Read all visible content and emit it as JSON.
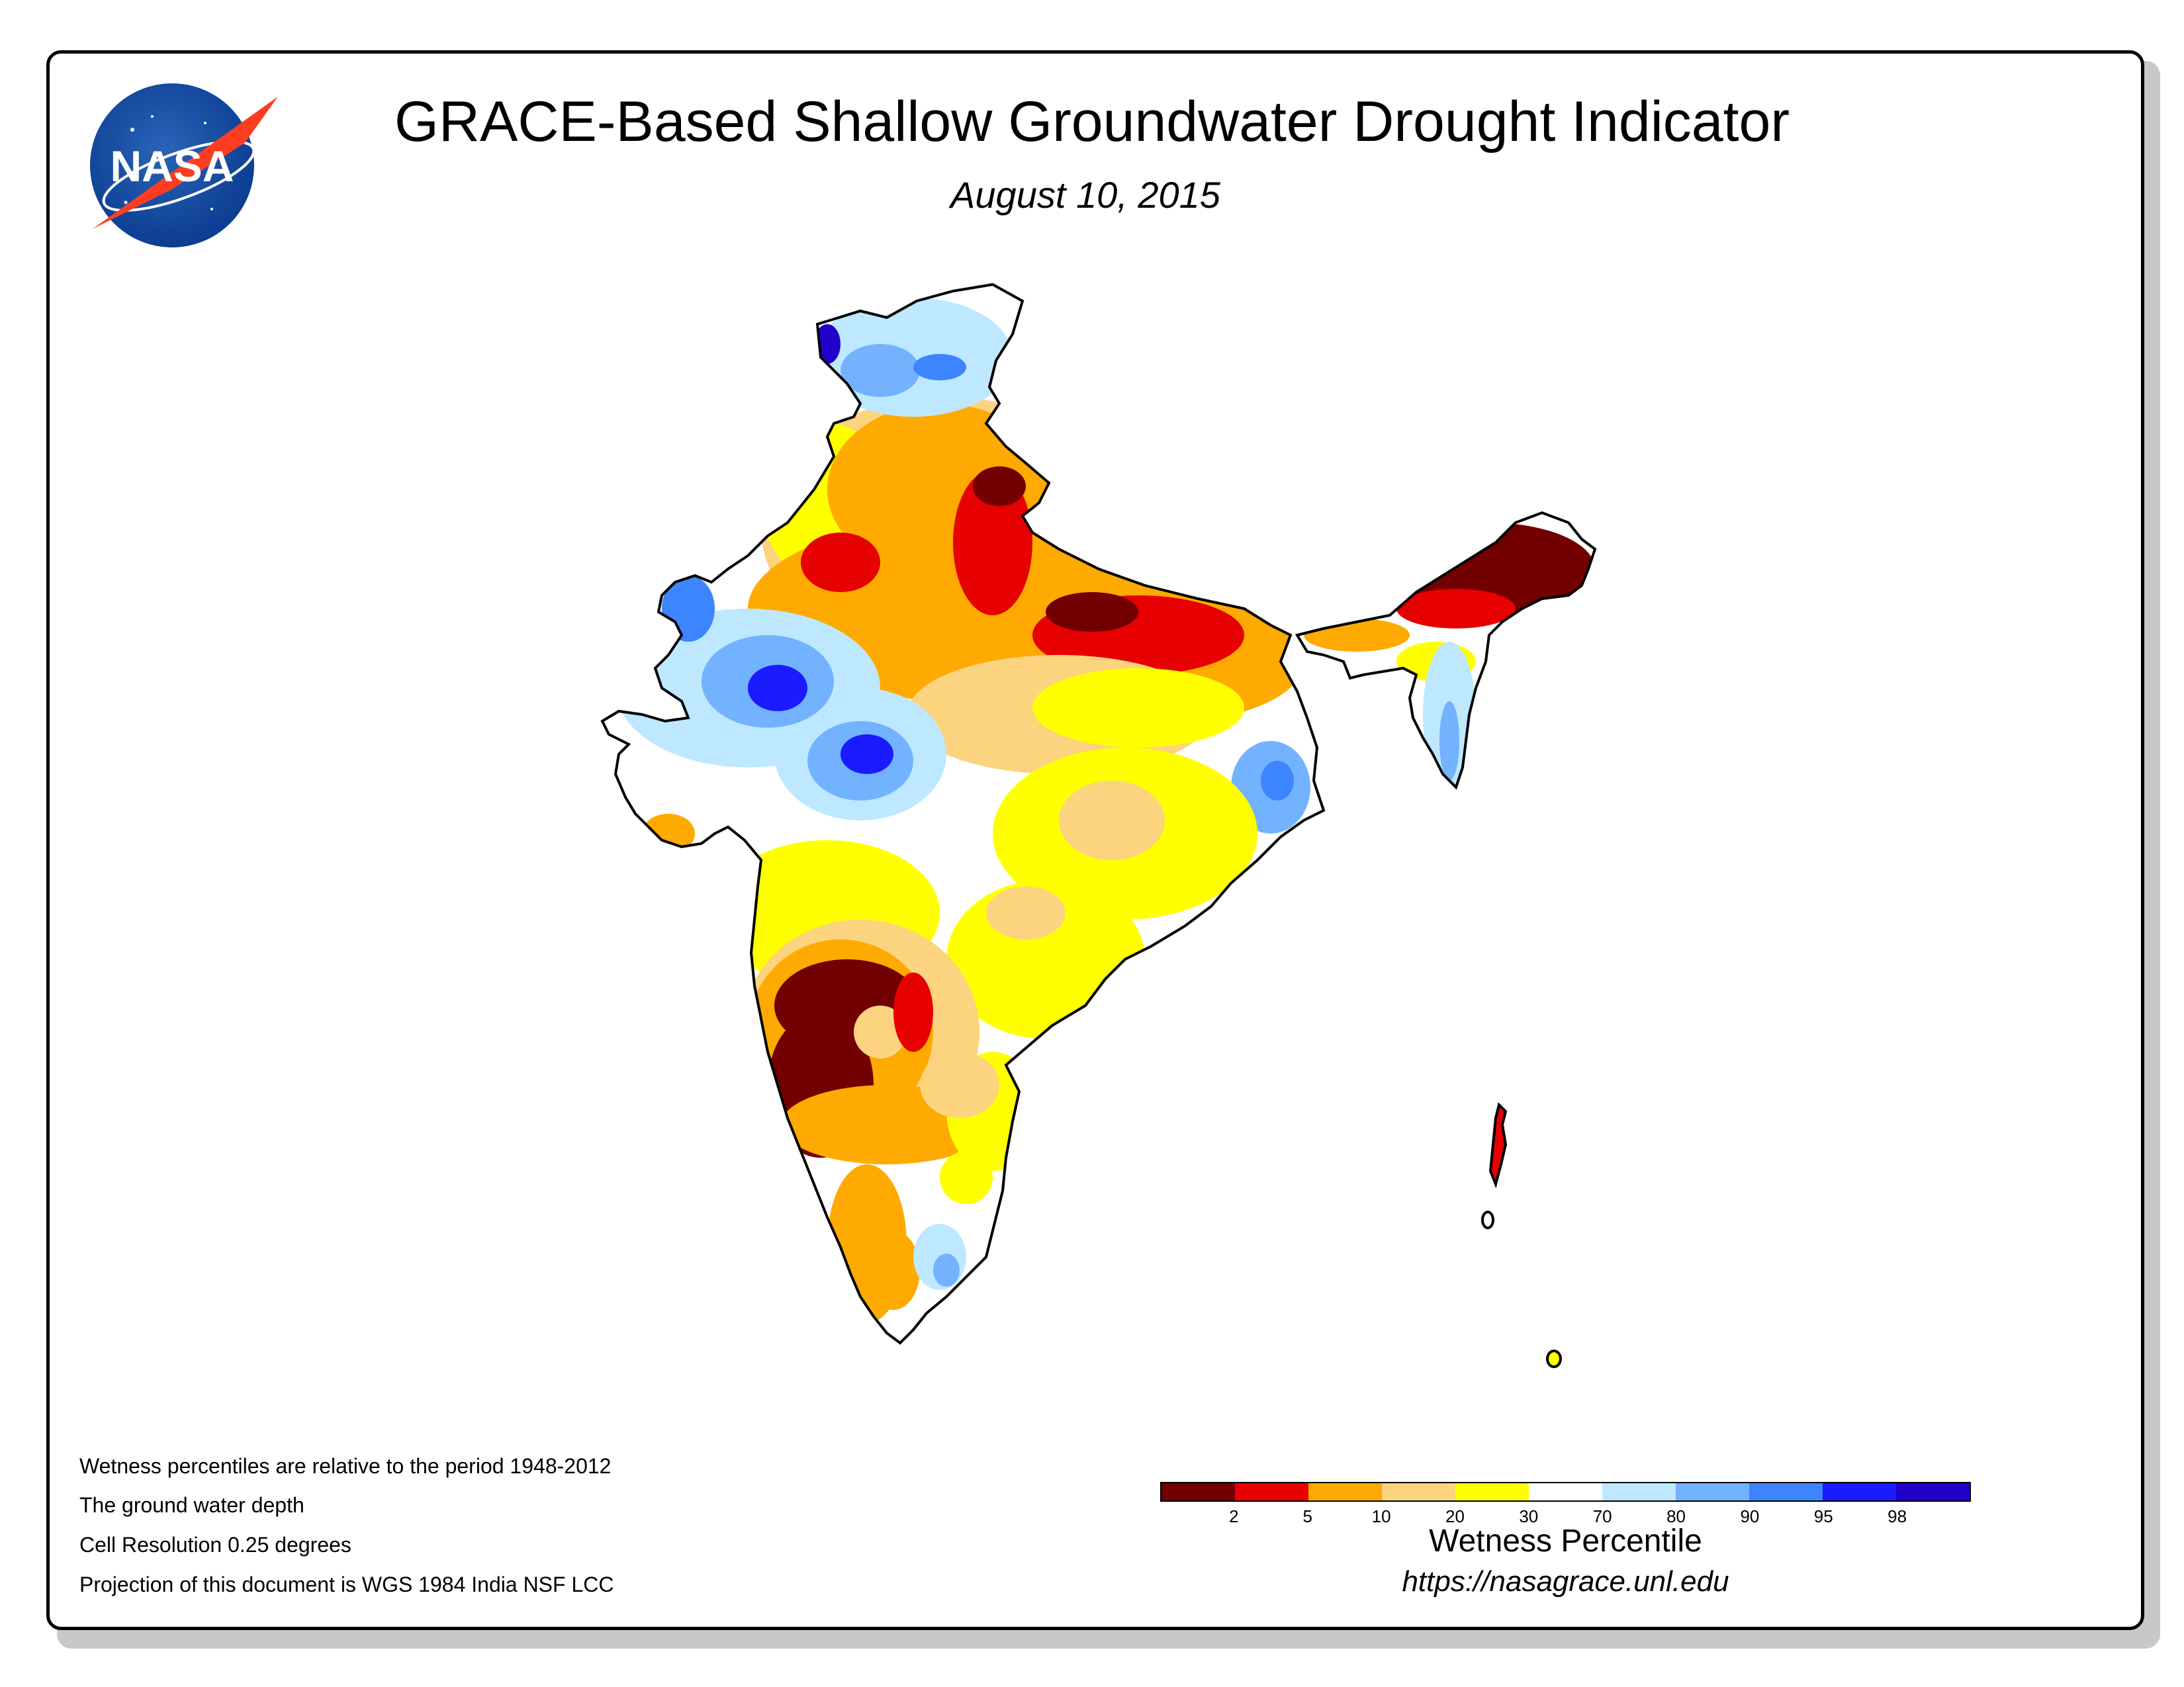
{
  "title": "GRACE-Based Shallow Groundwater Drought Indicator",
  "date": "August 10, 2015",
  "logo_text": "NASA",
  "notes": [
    "Wetness percentiles are relative to the period 1948-2012",
    "The ground water depth",
    "Cell Resolution 0.25 degrees",
    "Projection of this document is WGS 1984 India NSF LCC"
  ],
  "legend": {
    "title": "Wetness Percentile",
    "ticks": [
      "2",
      "5",
      "10",
      "20",
      "30",
      "70",
      "80",
      "90",
      "95",
      "98"
    ],
    "colors": [
      "#730000",
      "#e60000",
      "#ffaa00",
      "#fcd37f",
      "#ffff00",
      "#ffffff",
      "#bee8ff",
      "#73b2ff",
      "#3d85ff",
      "#1b1bff",
      "#2200cc"
    ]
  },
  "url": "https://nasagrace.unl.edu",
  "map_colors": {
    "severe": "#730000",
    "extreme": "#e60000",
    "moderate": "#ffaa00",
    "abnormal": "#fcd37f",
    "dry": "#ffff00",
    "normal": "#ffffff",
    "wet1": "#bee8ff",
    "wet2": "#73b2ff",
    "wet3": "#3d85ff",
    "wet4": "#1b1bff",
    "wet5": "#2200cc"
  }
}
